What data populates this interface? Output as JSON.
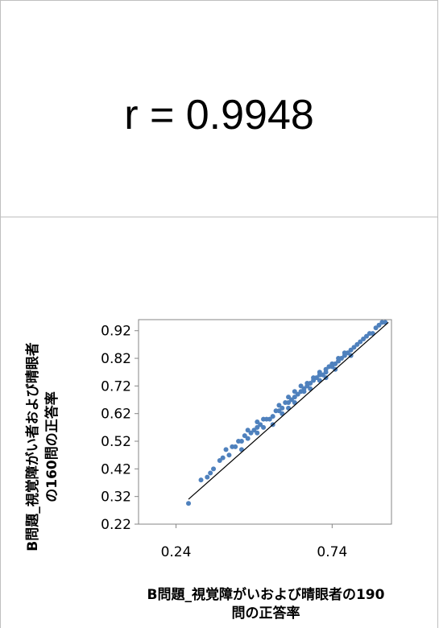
{
  "correlation_label": "r = 0.9948",
  "chart_data": {
    "type": "scatter",
    "xlabel": [
      "B問題_視覚障がいおよび晴眼者の190",
      "問の正答率"
    ],
    "ylabel": [
      "B問題_視覚障がい者および晴眼者",
      "の160問の正答率"
    ],
    "xlim": [
      0.12,
      0.93
    ],
    "ylim": [
      0.22,
      0.96
    ],
    "x_ticks": [
      0.24,
      0.74
    ],
    "x_tick_labels": [
      "0.24",
      "0.74"
    ],
    "y_ticks": [
      0.22,
      0.32,
      0.42,
      0.52,
      0.62,
      0.72,
      0.82,
      0.92
    ],
    "y_tick_labels": [
      "0.22",
      "0.32",
      "0.42",
      "0.52",
      "0.62",
      "0.72",
      "0.82",
      "0.92"
    ],
    "point_color": "#4f81bd",
    "trendline": {
      "color": "#000000",
      "x": [
        0.28,
        0.92
      ],
      "y": [
        0.31,
        0.95
      ]
    },
    "points": [
      [
        0.28,
        0.295
      ],
      [
        0.32,
        0.38
      ],
      [
        0.34,
        0.39
      ],
      [
        0.35,
        0.405
      ],
      [
        0.36,
        0.42
      ],
      [
        0.38,
        0.45
      ],
      [
        0.39,
        0.46
      ],
      [
        0.4,
        0.49
      ],
      [
        0.41,
        0.47
      ],
      [
        0.42,
        0.5
      ],
      [
        0.43,
        0.5
      ],
      [
        0.44,
        0.52
      ],
      [
        0.45,
        0.52
      ],
      [
        0.46,
        0.54
      ],
      [
        0.47,
        0.53
      ],
      [
        0.47,
        0.56
      ],
      [
        0.48,
        0.55
      ],
      [
        0.49,
        0.56
      ],
      [
        0.5,
        0.57
      ],
      [
        0.5,
        0.59
      ],
      [
        0.51,
        0.58
      ],
      [
        0.52,
        0.6
      ],
      [
        0.52,
        0.57
      ],
      [
        0.53,
        0.6
      ],
      [
        0.54,
        0.6
      ],
      [
        0.55,
        0.61
      ],
      [
        0.56,
        0.63
      ],
      [
        0.57,
        0.63
      ],
      [
        0.57,
        0.65
      ],
      [
        0.58,
        0.64
      ],
      [
        0.59,
        0.66
      ],
      [
        0.6,
        0.66
      ],
      [
        0.6,
        0.68
      ],
      [
        0.61,
        0.67
      ],
      [
        0.62,
        0.68
      ],
      [
        0.62,
        0.7
      ],
      [
        0.63,
        0.69
      ],
      [
        0.64,
        0.7
      ],
      [
        0.64,
        0.72
      ],
      [
        0.65,
        0.71
      ],
      [
        0.66,
        0.72
      ],
      [
        0.66,
        0.73
      ],
      [
        0.67,
        0.73
      ],
      [
        0.68,
        0.74
      ],
      [
        0.68,
        0.75
      ],
      [
        0.69,
        0.75
      ],
      [
        0.7,
        0.76
      ],
      [
        0.7,
        0.77
      ],
      [
        0.71,
        0.76
      ],
      [
        0.72,
        0.78
      ],
      [
        0.72,
        0.77
      ],
      [
        0.73,
        0.79
      ],
      [
        0.74,
        0.79
      ],
      [
        0.74,
        0.8
      ],
      [
        0.75,
        0.8
      ],
      [
        0.76,
        0.81
      ],
      [
        0.76,
        0.82
      ],
      [
        0.77,
        0.82
      ],
      [
        0.78,
        0.83
      ],
      [
        0.78,
        0.84
      ],
      [
        0.79,
        0.84
      ],
      [
        0.8,
        0.85
      ],
      [
        0.81,
        0.86
      ],
      [
        0.82,
        0.87
      ],
      [
        0.83,
        0.88
      ],
      [
        0.84,
        0.89
      ],
      [
        0.85,
        0.9
      ],
      [
        0.86,
        0.91
      ],
      [
        0.87,
        0.91
      ],
      [
        0.88,
        0.93
      ],
      [
        0.89,
        0.94
      ],
      [
        0.9,
        0.95
      ],
      [
        0.91,
        0.95
      ],
      [
        0.65,
        0.7
      ],
      [
        0.6,
        0.64
      ],
      [
        0.55,
        0.58
      ],
      [
        0.5,
        0.55
      ],
      [
        0.45,
        0.49
      ],
      [
        0.7,
        0.74
      ],
      [
        0.75,
        0.78
      ],
      [
        0.8,
        0.83
      ],
      [
        0.58,
        0.62
      ],
      [
        0.62,
        0.66
      ],
      [
        0.67,
        0.71
      ],
      [
        0.72,
        0.75
      ]
    ]
  }
}
